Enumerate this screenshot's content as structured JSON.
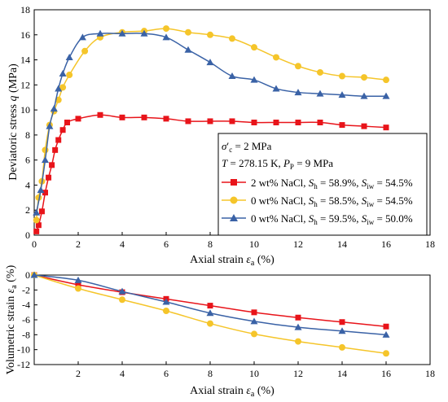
{
  "chart_data": [
    {
      "type": "line",
      "xlabel": "Axial strain εa (%)",
      "ylabel": "Deviatoric stress q (MPa)",
      "xlim": [
        0,
        18
      ],
      "ylim": [
        0,
        18
      ],
      "xticks": [
        "0",
        "2",
        "4",
        "6",
        "8",
        "10",
        "12",
        "14",
        "16",
        "18"
      ],
      "yticks": [
        "0",
        "2",
        "4",
        "6",
        "8",
        "10",
        "12",
        "14",
        "16",
        "18"
      ],
      "legend": {
        "placement": "bottom-right",
        "header": [
          "σ′c = 2 MPa",
          "T = 278.15 K, PP = 9 MPa"
        ]
      },
      "series": [
        {
          "name": "2 wt% NaCl, Sh = 58.9%, Siw = 54.5%",
          "color": "#e8141a",
          "marker": "square",
          "x": [
            0.1,
            0.2,
            0.35,
            0.5,
            0.65,
            0.8,
            0.95,
            1.1,
            1.3,
            1.5,
            2,
            3,
            4,
            5,
            6,
            7,
            8,
            9,
            10,
            11,
            12,
            13,
            14,
            15,
            16
          ],
          "y": [
            0.3,
            0.8,
            1.9,
            3.4,
            4.6,
            5.6,
            6.8,
            7.6,
            8.4,
            9.0,
            9.3,
            9.6,
            9.4,
            9.4,
            9.3,
            9.1,
            9.1,
            9.1,
            9.0,
            9.0,
            9.0,
            9.0,
            8.8,
            8.7,
            8.6
          ]
        },
        {
          "name": "0 wt% NaCl, Sh = 58.5%, Siw = 54.5%",
          "color": "#f5c52a",
          "marker": "circle",
          "x": [
            0.1,
            0.2,
            0.35,
            0.5,
            0.7,
            0.9,
            1.1,
            1.3,
            1.6,
            2.3,
            3,
            4,
            5,
            6,
            7,
            8,
            9,
            10,
            11,
            12,
            13,
            14,
            15,
            16
          ],
          "y": [
            1.2,
            3.0,
            4.3,
            6.8,
            8.8,
            9.9,
            10.8,
            11.8,
            12.8,
            14.7,
            15.8,
            16.2,
            16.3,
            16.5,
            16.2,
            16.0,
            15.7,
            15.0,
            14.2,
            13.5,
            13.0,
            12.7,
            12.6,
            12.4
          ],
          "note": "legend entry"
        },
        {
          "name": "0 wt% NaCl, Sh = 59.5%, Siw = 50.0%",
          "color": "#3a62a6",
          "marker": "triangle",
          "x": [
            0.1,
            0.3,
            0.5,
            0.7,
            0.9,
            1.1,
            1.3,
            1.6,
            2.2,
            3,
            4,
            5,
            6,
            7,
            8,
            9,
            10,
            11,
            12,
            13,
            14,
            15,
            16
          ],
          "y": [
            1.8,
            3.6,
            6.0,
            8.7,
            10.1,
            11.7,
            12.9,
            14.2,
            15.8,
            16.1,
            16.1,
            16.1,
            15.8,
            14.8,
            13.8,
            12.7,
            12.4,
            11.7,
            11.4,
            11.3,
            11.2,
            11.1,
            11.1
          ]
        }
      ]
    },
    {
      "type": "line",
      "xlabel": "Axial strain εa (%)",
      "ylabel": "Volumetric strain εa (%)",
      "xlim": [
        0,
        18
      ],
      "ylim": [
        -12,
        0
      ],
      "xticks": [
        "2",
        "4",
        "6",
        "8",
        "10",
        "12",
        "14",
        "16",
        "18"
      ],
      "yticks": [
        "0",
        "-2",
        "-4",
        "-6",
        "-8",
        "-10",
        "-12"
      ],
      "series": [
        {
          "name": "2 wt% NaCl, Sh = 58.9%, Siw = 54.5%",
          "color": "#e8141a",
          "marker": "square",
          "x": [
            0,
            2,
            4,
            6,
            8,
            10,
            12,
            14,
            16
          ],
          "y": [
            0,
            -1.3,
            -2.3,
            -3.2,
            -4.1,
            -5.0,
            -5.7,
            -6.3,
            -6.9
          ]
        },
        {
          "name": "0 wt% NaCl, Sh = 58.5%, Siw = 54.5%",
          "color": "#f5c52a",
          "marker": "circle",
          "x": [
            0,
            2,
            4,
            6,
            8,
            10,
            12,
            14,
            16
          ],
          "y": [
            0,
            -1.8,
            -3.3,
            -4.8,
            -6.5,
            -7.9,
            -8.9,
            -9.7,
            -10.5
          ]
        },
        {
          "name": "0 wt% NaCl, Sh = 59.5%, Siw = 50.0%",
          "color": "#3a62a6",
          "marker": "triangle",
          "x": [
            0,
            2,
            4,
            6,
            8,
            10,
            12,
            14,
            16
          ],
          "y": [
            0,
            -0.7,
            -2.2,
            -3.6,
            -5.1,
            -6.2,
            -7.0,
            -7.5,
            -8.0
          ]
        }
      ]
    }
  ]
}
